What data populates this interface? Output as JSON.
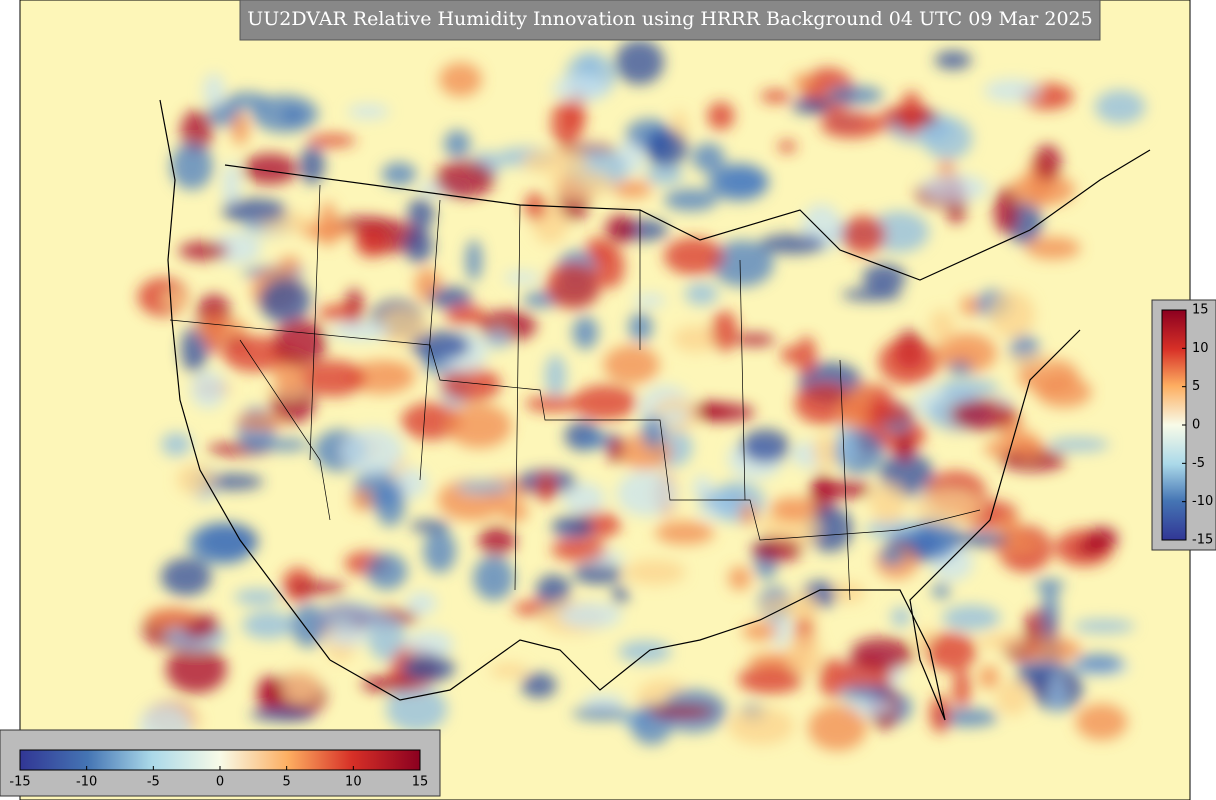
{
  "title": "UU2DVAR Relative Humidity Innovation using HRRR Background 04 UTC 09 Mar 2025",
  "colorbar_right": {
    "range": [
      -15,
      15
    ],
    "ticks": [
      15,
      10,
      5,
      0,
      -5,
      -10,
      -15
    ]
  },
  "colorbar_bottom": {
    "range": [
      -15,
      15
    ],
    "ticks": [
      -15,
      -10,
      -5,
      0,
      5,
      10,
      15
    ]
  }
}
